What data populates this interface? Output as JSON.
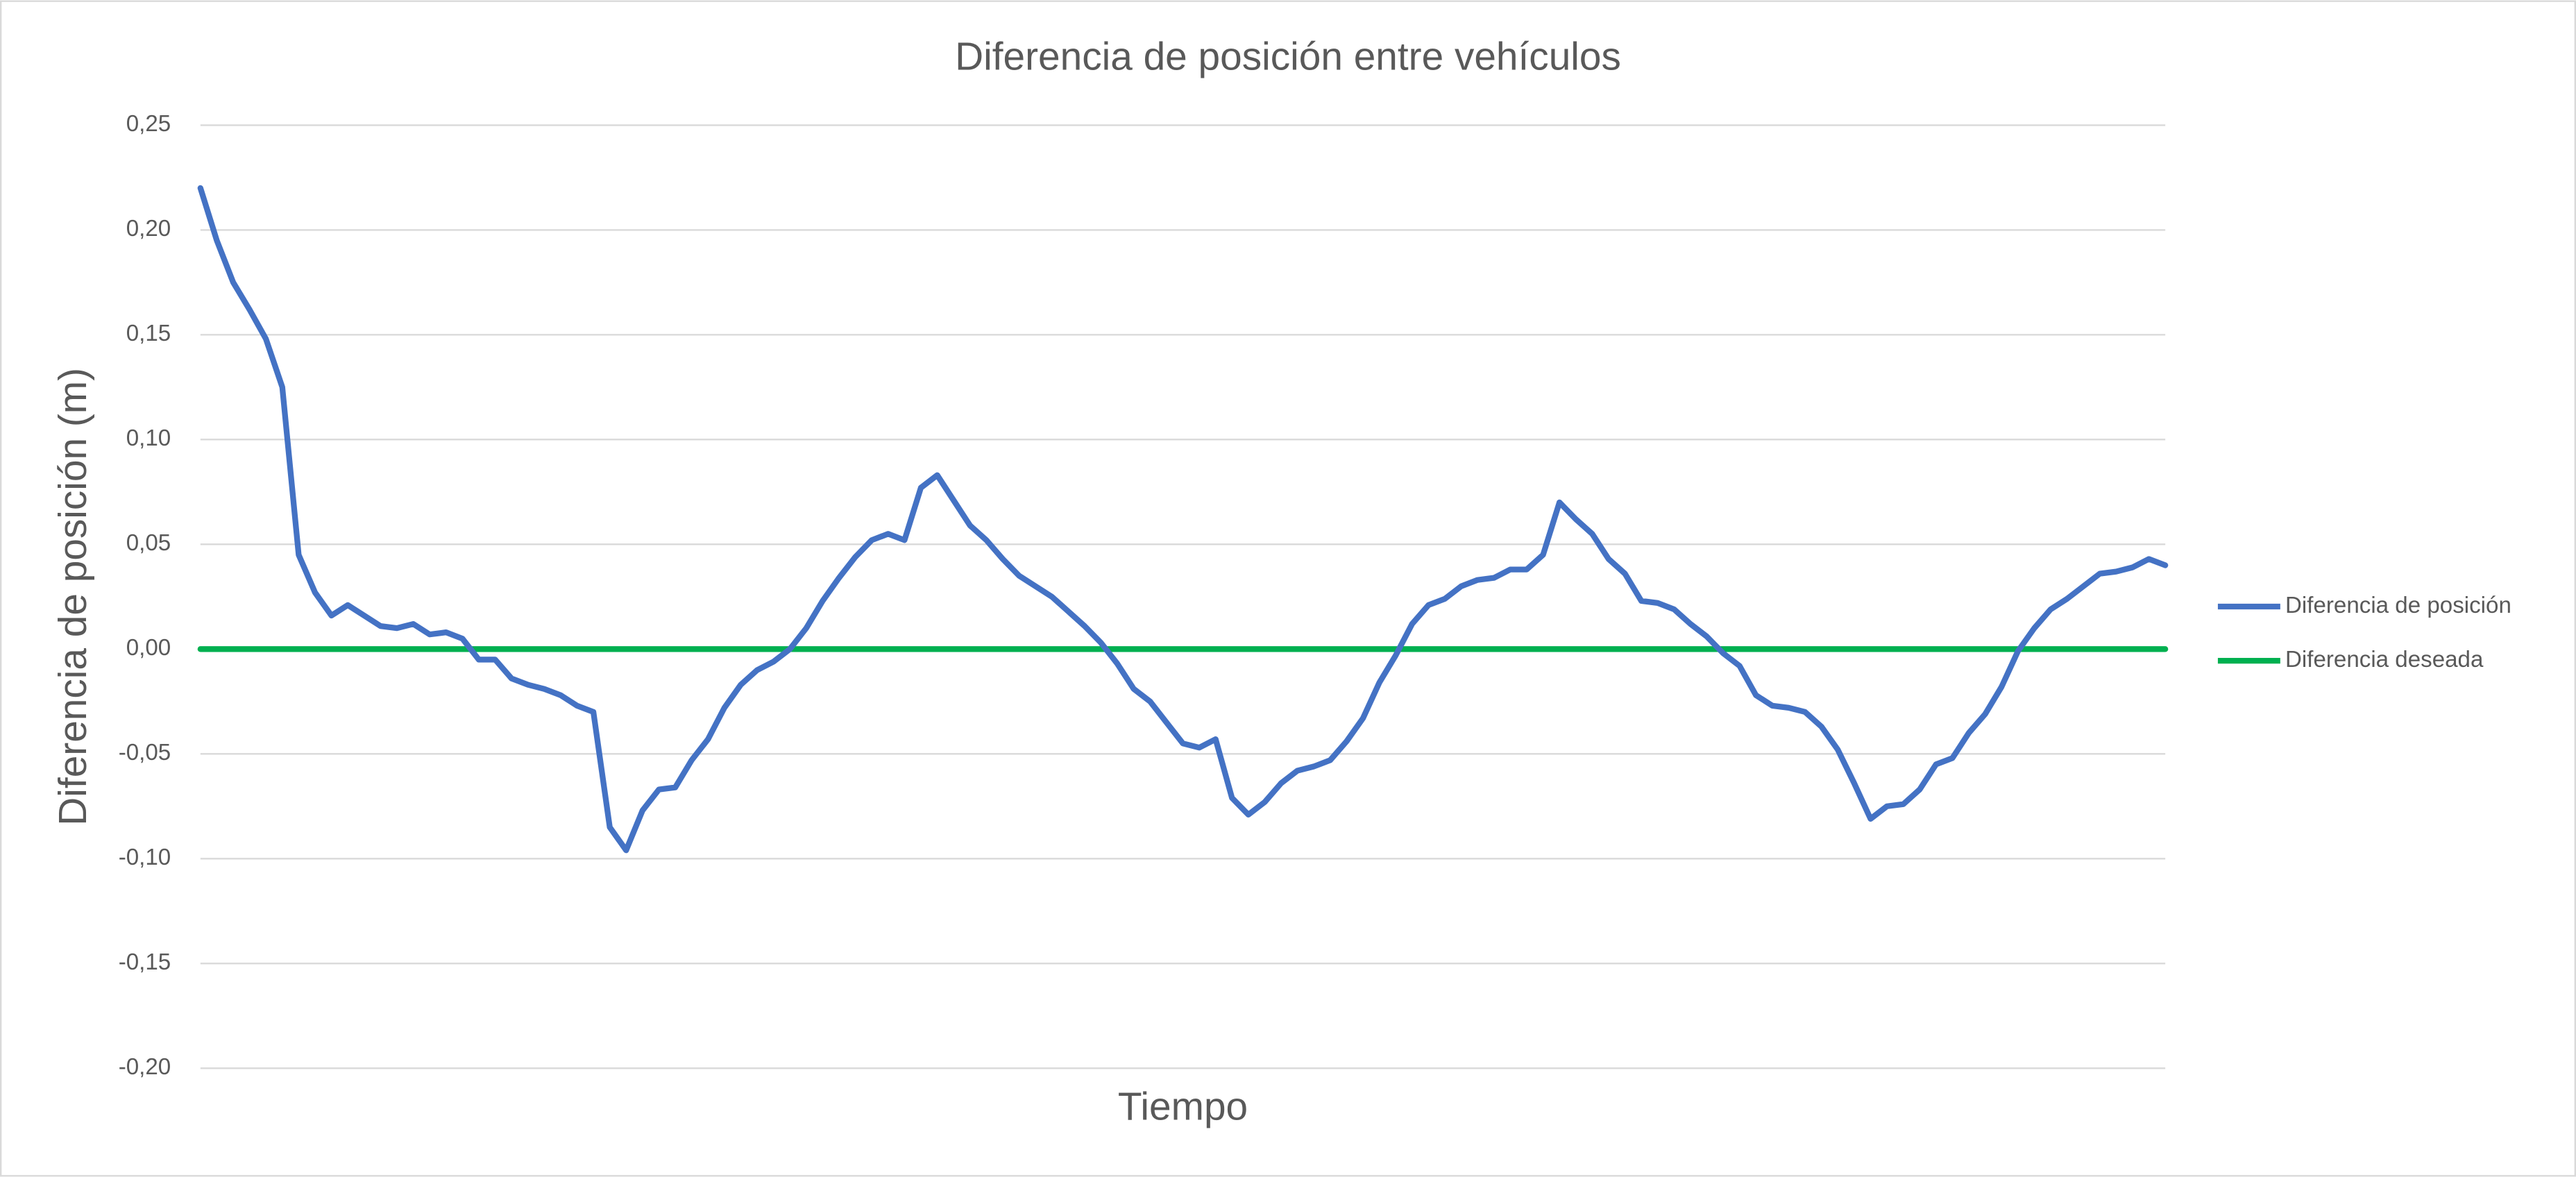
{
  "chart_data": {
    "type": "line",
    "title": "Diferencia de posición entre vehículos",
    "x_label": "Tiempo",
    "y_label": "Diferencia de posición (m)",
    "categories": [
      null,
      null,
      null,
      null,
      null,
      null,
      null,
      null,
      null,
      null,
      null,
      null,
      null,
      null,
      null,
      null,
      null,
      null,
      null,
      null,
      null,
      null,
      null,
      null,
      null,
      null,
      null,
      null,
      null,
      null,
      null,
      null,
      null,
      null,
      null,
      null,
      null,
      null,
      null,
      null,
      null,
      null,
      null,
      null,
      null,
      null,
      null,
      null,
      null,
      null,
      null,
      null,
      null,
      null,
      null,
      null,
      null,
      null,
      null,
      null,
      null,
      null,
      null,
      null,
      null,
      null,
      null,
      null,
      null,
      null,
      null,
      null,
      null,
      null,
      null,
      null,
      null,
      null,
      null,
      null,
      null,
      null,
      null,
      null,
      null,
      null,
      null,
      null,
      null,
      null,
      null,
      null,
      null,
      null,
      null,
      null,
      null,
      null,
      null,
      null,
      null,
      null,
      null,
      null,
      null,
      null,
      null,
      null,
      null,
      null,
      null,
      null,
      null,
      null,
      null,
      null,
      null,
      null,
      null,
      null,
      null
    ],
    "series": [
      {
        "name": "Diferencia de posición",
        "color": "#4472c4",
        "values": [
          0.22,
          0.195,
          0.175,
          0.162,
          0.148,
          0.125,
          0.045,
          0.027,
          0.016,
          0.021,
          0.016,
          0.011,
          0.01,
          0.012,
          0.007,
          0.008,
          0.005,
          -0.005,
          -0.005,
          -0.014,
          -0.017,
          -0.019,
          -0.022,
          -0.027,
          -0.03,
          -0.085,
          -0.096,
          -0.077,
          -0.067,
          -0.066,
          -0.053,
          -0.043,
          -0.028,
          -0.017,
          -0.01,
          -0.006,
          0.0,
          0.01,
          0.023,
          0.034,
          0.044,
          0.052,
          0.055,
          0.052,
          0.077,
          0.083,
          0.071,
          0.059,
          0.052,
          0.043,
          0.035,
          0.03,
          0.025,
          0.018,
          0.011,
          0.003,
          -0.007,
          -0.019,
          -0.025,
          -0.035,
          -0.045,
          -0.047,
          -0.043,
          -0.071,
          -0.079,
          -0.073,
          -0.064,
          -0.058,
          -0.056,
          -0.053,
          -0.044,
          -0.033,
          -0.016,
          -0.003,
          0.012,
          0.021,
          0.024,
          0.03,
          0.033,
          0.034,
          0.038,
          0.038,
          0.045,
          0.07,
          0.062,
          0.055,
          0.043,
          0.036,
          0.023,
          0.022,
          0.019,
          0.012,
          0.006,
          -0.002,
          -0.008,
          -0.022,
          -0.027,
          -0.028,
          -0.03,
          -0.037,
          -0.048,
          -0.064,
          -0.081,
          -0.075,
          -0.074,
          -0.067,
          -0.055,
          -0.052,
          -0.04,
          -0.031,
          -0.018,
          -0.001,
          0.01,
          0.019,
          0.024,
          0.03,
          0.036,
          0.037,
          0.039,
          0.043,
          0.04
        ]
      },
      {
        "name": "Diferencia deseada",
        "color": "#00b050",
        "values": [
          0,
          0,
          0,
          0,
          0,
          0,
          0,
          0,
          0,
          0,
          0,
          0,
          0,
          0,
          0,
          0,
          0,
          0,
          0,
          0,
          0,
          0,
          0,
          0,
          0,
          0,
          0,
          0,
          0,
          0,
          0,
          0,
          0,
          0,
          0,
          0,
          0,
          0,
          0,
          0,
          0,
          0,
          0,
          0,
          0,
          0,
          0,
          0,
          0,
          0,
          0,
          0,
          0,
          0,
          0,
          0,
          0,
          0,
          0,
          0,
          0,
          0,
          0,
          0,
          0,
          0,
          0,
          0,
          0,
          0,
          0,
          0,
          0,
          0,
          0,
          0,
          0,
          0,
          0,
          0,
          0,
          0,
          0,
          0,
          0,
          0,
          0,
          0,
          0,
          0,
          0,
          0,
          0,
          0,
          0,
          0,
          0,
          0,
          0,
          0,
          0,
          0,
          0,
          0,
          0,
          0,
          0,
          0,
          0,
          0,
          0,
          0,
          0,
          0,
          0,
          0,
          0,
          0,
          0,
          0,
          0
        ]
      }
    ],
    "ylim": [
      -0.2,
      0.25
    ],
    "yticks": [
      {
        "value": -0.2,
        "label": "-0,20"
      },
      {
        "value": -0.15,
        "label": "-0,15"
      },
      {
        "value": -0.1,
        "label": "-0,10"
      },
      {
        "value": -0.05,
        "label": "-0,05"
      },
      {
        "value": 0,
        "label": "0,00"
      },
      {
        "value": 0.05,
        "label": "0,05"
      },
      {
        "value": 0.1,
        "label": "0,10"
      },
      {
        "value": 0.15,
        "label": "0,15"
      },
      {
        "value": 0.2,
        "label": "0,20"
      },
      {
        "value": 0.25,
        "label": "0,25"
      }
    ],
    "grid": true,
    "legend": "right"
  }
}
